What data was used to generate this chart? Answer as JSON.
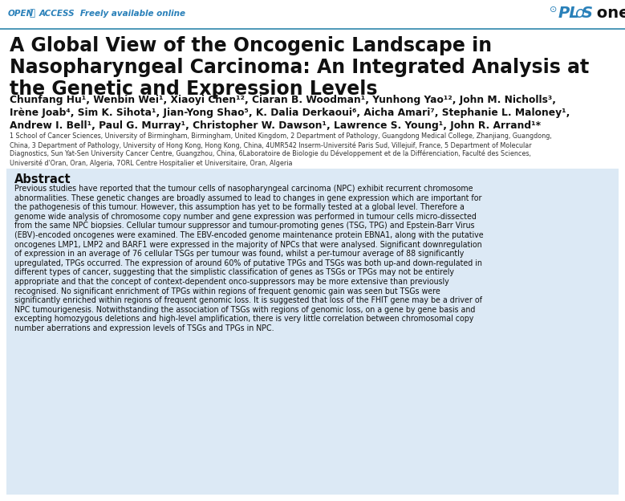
{
  "bg_color": "#ffffff",
  "plos_color": "#2980b9",
  "header_line_color": "#2E86AB",
  "title_line1": "A Global View of the Oncogenic Landscape in",
  "title_line2": "Nasopharyngeal Carcinoma: An Integrated Analysis at",
  "title_line3": "the Genetic and Expression Levels",
  "author_line1": "Chunfang Hu¹, Wenbin Wei¹, Xiaoyi Chen¹², Ciaran B. Woodman¹, Yunhong Yao¹², John M. Nicholls³,",
  "author_line2": "Irène Joab⁴, Sim K. Sihota¹, Jian-Yong Shao⁵, K. Dalia Derkaoui⁶, Aicha Amari⁷, Stephanie L. Maloney¹,",
  "author_line3": "Andrew I. Bell¹, Paul G. Murray¹, Christopher W. Dawson¹, Lawrence S. Young¹, John R. Arrand¹*",
  "aff_line1": "1 School of Cancer Sciences, University of Birmingham, Birmingham, United Kingdom, 2 Department of Pathology, Guangdong Medical College, Zhanjiang, Guangdong,",
  "aff_line2": "China, 3 Department of Pathology, University of Hong Kong, Hong Kong, China, 4UMR542 Inserm-Université Paris Sud, Villejuif, France, 5 Department of Molecular",
  "aff_line3": "Diagnostics, Sun Yat-Sen University Cancer Centre, Guangzhou, China, 6Laboratoire de Biologie du Développement et de la Différenciation, Faculté des Sciences,",
  "aff_line4": "Université d'Oran, Oran, Algeria, 7ORL Centre Hospitalier et Universitaire, Oran, Algeria",
  "abstract_title": "Abstract",
  "abs_lines": [
    "Previous studies have reported that the tumour cells of nasopharyngeal carcinoma (NPC) exhibit recurrent chromosome",
    "abnormalities. These genetic changes are broadly assumed to lead to changes in gene expression which are important for",
    "the pathogenesis of this tumour. However, this assumption has yet to be formally tested at a global level. Therefore a",
    "genome wide analysis of chromosome copy number and gene expression was performed in tumour cells micro-dissected",
    "from the same NPC biopsies. Cellular tumour suppressor and tumour-promoting genes (TSG, TPG) and Epstein-Barr Virus",
    "(EBV)-encoded oncogenes were examined. The EBV-encoded genome maintenance protein EBNA1, along with the putative",
    "oncogenes LMP1, LMP2 and BARF1 were expressed in the majority of NPCs that were analysed. Significant downregulation",
    "of expression in an average of 76 cellular TSGs per tumour was found, whilst a per-tumour average of 88 significantly",
    "upregulated, TPGs occurred. The expression of around 60% of putative TPGs and TSGs was both up-and down-regulated in",
    "different types of cancer, suggesting that the simplistic classification of genes as TSGs or TPGs may not be entirely",
    "appropriate and that the concept of context-dependent onco-suppressors may be more extensive than previously",
    "recognised. No significant enrichment of TPGs within regions of frequent genomic gain was seen but TSGs were",
    "significantly enriched within regions of frequent genomic loss. It is suggested that loss of the FHIT gene may be a driver of",
    "NPC tumourigenesis. Notwithstanding the association of TSGs with regions of genomic loss, on a gene by gene basis and",
    "excepting homozygous deletions and high-level amplification, there is very little correlation between chromosomal copy",
    "number aberrations and expression levels of TSGs and TPGs in NPC."
  ],
  "abstract_bg": "#dce9f5"
}
